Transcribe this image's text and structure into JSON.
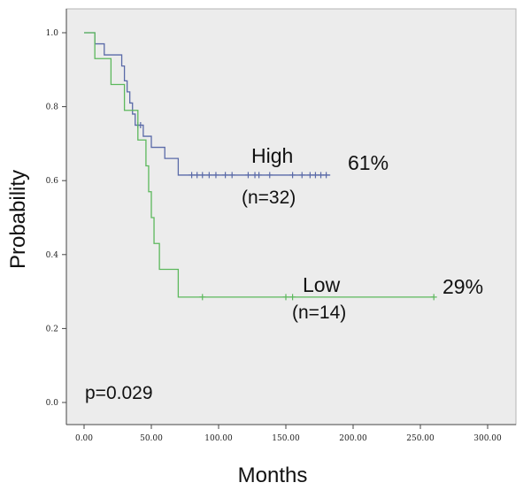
{
  "chart_data": {
    "type": "line",
    "step": true,
    "title": "",
    "xlabel": "Months",
    "ylabel": "Probability",
    "xlim": [
      0,
      300
    ],
    "ylim": [
      0,
      1
    ],
    "x_ticks": [
      "0.00",
      "50.00",
      "100.00",
      "150.00",
      "200.00",
      "250.00",
      "300.00"
    ],
    "y_ticks": [
      "0.0",
      "0.2",
      "0.4",
      "0.6",
      "0.8",
      "1.0"
    ],
    "grid": false,
    "background": "#ececec",
    "series": [
      {
        "name": "High",
        "subtitle": "(n=32)",
        "end_label": "61%",
        "color": "#5a6aa8",
        "steps": [
          [
            0,
            1.0
          ],
          [
            8,
            0.97
          ],
          [
            15,
            0.94
          ],
          [
            28,
            0.91
          ],
          [
            30,
            0.87
          ],
          [
            32,
            0.84
          ],
          [
            34,
            0.81
          ],
          [
            36,
            0.78
          ],
          [
            38,
            0.75
          ],
          [
            44,
            0.72
          ],
          [
            50,
            0.69
          ],
          [
            60,
            0.66
          ],
          [
            70,
            0.615
          ],
          [
            183,
            0.615
          ]
        ],
        "censored_x": [
          40,
          42,
          80,
          84,
          88,
          93,
          98,
          105,
          110,
          122,
          127,
          130,
          138,
          155,
          162,
          168,
          172,
          176,
          180
        ]
      },
      {
        "name": "Low",
        "subtitle": "(n=14)",
        "end_label": "29%",
        "color": "#5cb85c",
        "steps": [
          [
            0,
            1.0
          ],
          [
            8,
            0.93
          ],
          [
            20,
            0.86
          ],
          [
            30,
            0.79
          ],
          [
            40,
            0.71
          ],
          [
            46,
            0.64
          ],
          [
            48,
            0.57
          ],
          [
            50,
            0.5
          ],
          [
            52,
            0.43
          ],
          [
            56,
            0.36
          ],
          [
            70,
            0.285
          ],
          [
            260,
            0.285
          ]
        ],
        "censored_x": [
          88,
          150,
          155,
          260
        ]
      }
    ],
    "annotations": {
      "p_value": "p=0.029"
    }
  }
}
